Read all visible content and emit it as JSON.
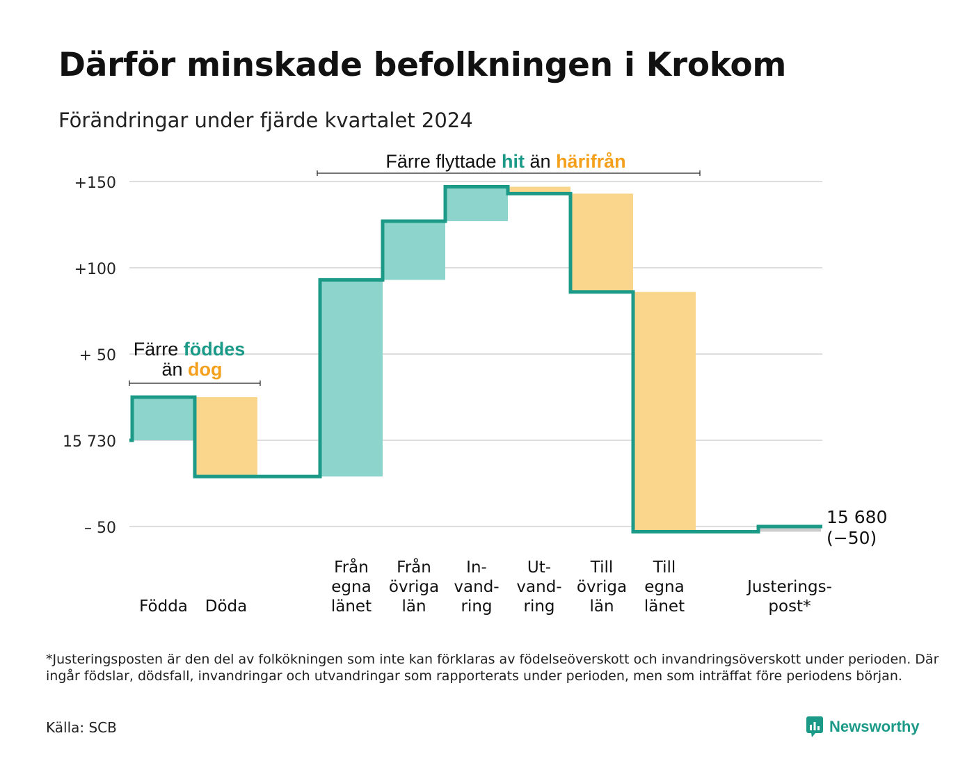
{
  "title": "Därför minskade befolkningen i Krokom",
  "subtitle": "Förändringar under fjärde kvartalet 2024",
  "colors": {
    "positive": "#8dd5cc",
    "negative": "#fad68c",
    "line": "#1c9a88",
    "adjustment": "#cccccc",
    "orange_text": "#f5a01d",
    "grid": "#dddddd"
  },
  "annotations": {
    "births_deaths": {
      "prefix": "Färre",
      "positive_word": "föddes",
      "middle": "än",
      "negative_word": "dog"
    },
    "migration": {
      "prefix": "Färre flyttade",
      "positive_word": "hit",
      "middle": "än",
      "negative_word": "härifrån"
    }
  },
  "chart_data": {
    "type": "bar",
    "subtype": "waterfall",
    "start_value": 15730,
    "end_label": "15 680",
    "end_change_label": "(−50)",
    "y_ticks": [
      {
        "value": 150,
        "label": "+150"
      },
      {
        "value": 100,
        "label": "+100"
      },
      {
        "value": 50,
        "label": "+ 50"
      },
      {
        "value": 0,
        "label": "15 730"
      },
      {
        "value": -50,
        "label": "– 50"
      }
    ],
    "ylim": [
      -52,
      152
    ],
    "grid": true,
    "steps": [
      {
        "category": [
          "Födda"
        ],
        "value": 25,
        "kind": "positive"
      },
      {
        "category": [
          "Döda"
        ],
        "value": -46,
        "kind": "negative"
      },
      {
        "category": [
          ""
        ],
        "value": 0,
        "kind": "none"
      },
      {
        "category": [
          "Från",
          "egna",
          "länet"
        ],
        "value": 114,
        "kind": "positive"
      },
      {
        "category": [
          "Från",
          "övriga",
          "län"
        ],
        "value": 34,
        "kind": "positive"
      },
      {
        "category": [
          "In-",
          "vand-",
          "ring"
        ],
        "value": 20,
        "kind": "positive"
      },
      {
        "category": [
          "Ut-",
          "vand-",
          "ring"
        ],
        "value": -4,
        "kind": "negative"
      },
      {
        "category": [
          "Till",
          "övriga",
          "län"
        ],
        "value": -57,
        "kind": "negative"
      },
      {
        "category": [
          "Till",
          "egna",
          "länet"
        ],
        "value": -139,
        "kind": "negative"
      },
      {
        "category": [
          ""
        ],
        "value": 0,
        "kind": "none"
      },
      {
        "category": [
          "Justerings-",
          "post*"
        ],
        "value": 3,
        "kind": "adjustment"
      }
    ]
  },
  "footnote": "*Justeringsposten är den del av folkökningen som inte kan förklaras av födelseöverskott och invandringsöverskott under perioden. Där ingår födslar, dödsfall, invandringar och utvandringar som rapporterats under perioden, men som inträffat före periodens början.",
  "source": "Källa: SCB",
  "brand": {
    "name": "Newsworthy",
    "icon": "newsworthy-logo-icon"
  }
}
